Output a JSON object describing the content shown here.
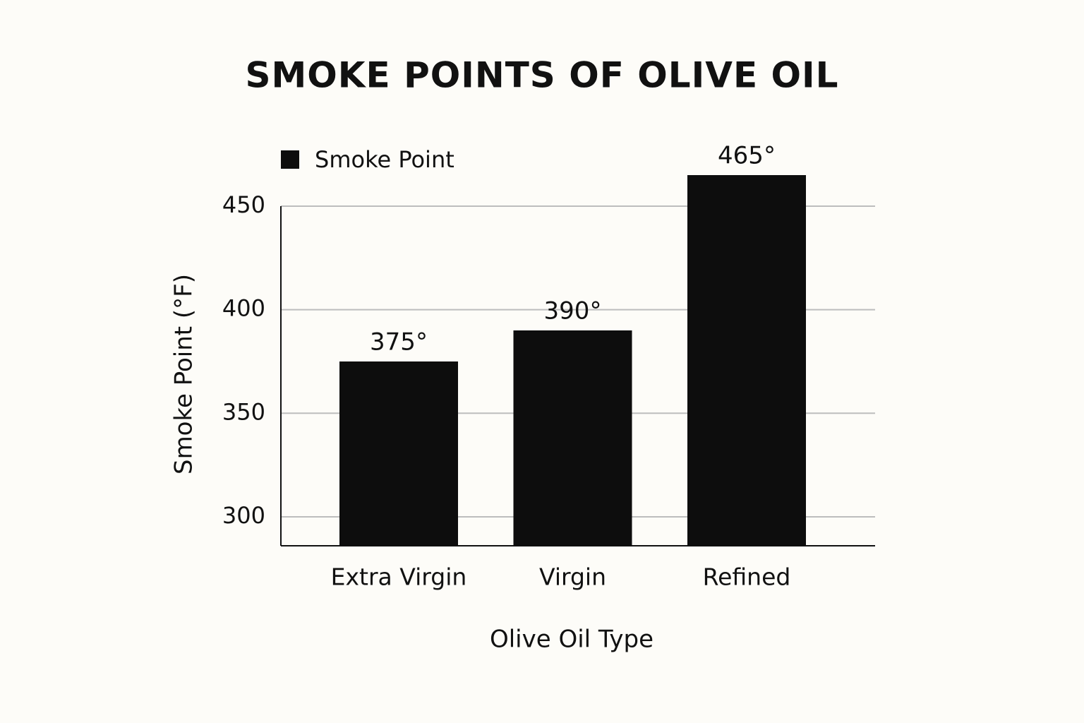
{
  "chart_data": {
    "type": "bar",
    "title": "SMOKE POINTS OF OLIVE OIL",
    "x_label": "Olive Oil Type",
    "y_label": "Smoke Point (°F)",
    "categories": [
      "Extra Virgin",
      "Virgin",
      "Refined"
    ],
    "series": [
      {
        "name": "Smoke Point",
        "color": "#0d0d0d",
        "values": [
          375,
          390,
          465
        ],
        "value_labels": [
          "375°",
          "390°",
          "465°"
        ]
      }
    ],
    "ylim": [
      286,
      450
    ],
    "yticks": [
      300,
      350,
      400,
      450
    ],
    "grid": true,
    "legend": "top-left"
  }
}
